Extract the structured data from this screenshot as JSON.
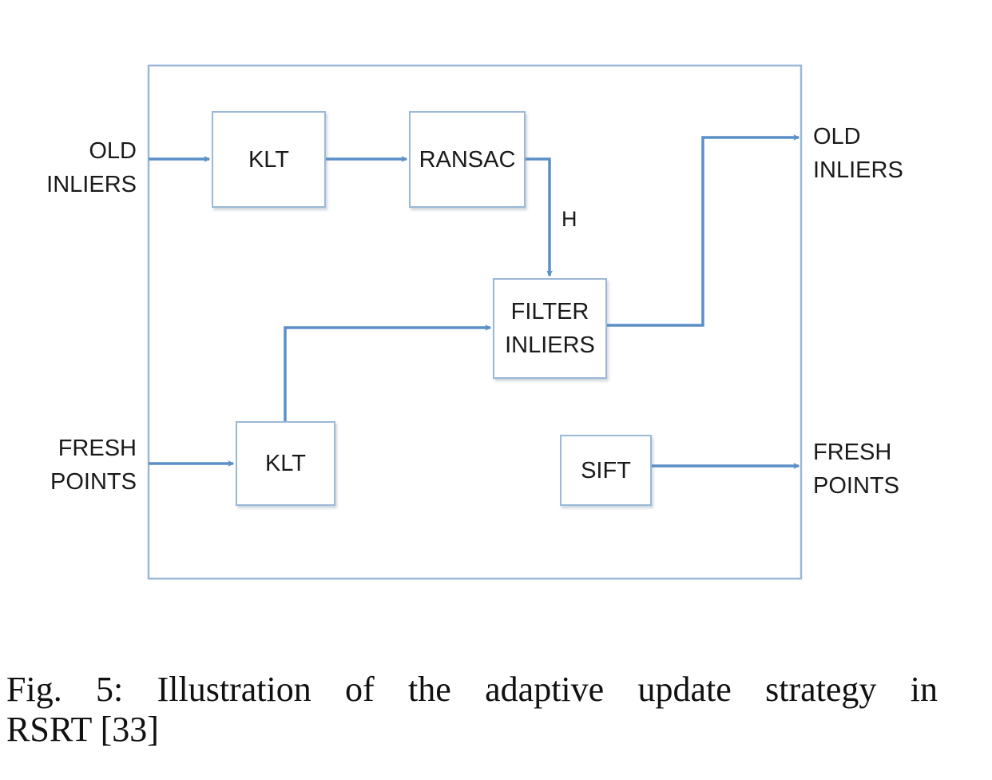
{
  "diagram": {
    "inputs": {
      "old_inliers": [
        "OLD",
        "INLIERS"
      ],
      "fresh_points": [
        "FRESH",
        "POINTS"
      ]
    },
    "outputs": {
      "old_inliers": [
        "OLD",
        "INLIERS"
      ],
      "fresh_points": [
        "FRESH",
        "POINTS"
      ]
    },
    "blocks": {
      "klt_top": "KLT",
      "ransac": "RANSAC",
      "filter_inliers": [
        "FILTER",
        "INLIERS"
      ],
      "klt_bottom": "KLT",
      "sift": "SIFT"
    },
    "edge_labels": {
      "homography": "H"
    },
    "colors": {
      "arrow": "#5b8fc7",
      "box_border": "#9bb8d6",
      "outer_border": "#9bb8d6"
    }
  },
  "caption": {
    "line1": "Fig. 5: Illustration of the adaptive update strategy in",
    "line2": "RSRT [33]"
  }
}
